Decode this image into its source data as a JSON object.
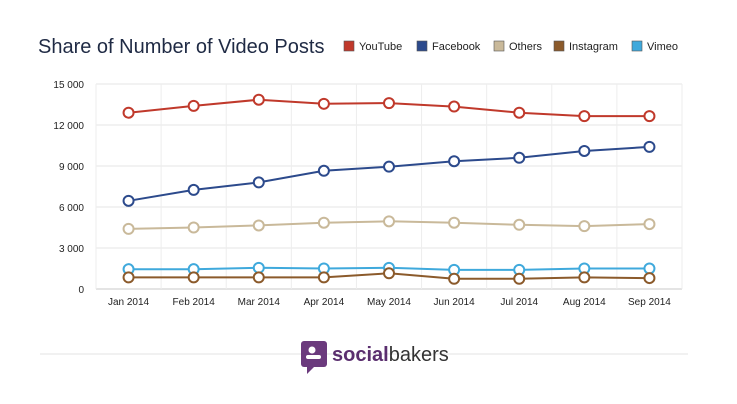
{
  "chart_data": {
    "type": "line",
    "title": "Share of Number of Video Posts",
    "xlabel": "",
    "ylabel": "",
    "categories": [
      "Jan 2014",
      "Feb 2014",
      "Mar 2014",
      "Apr 2014",
      "May 2014",
      "Jun 2014",
      "Jul 2014",
      "Aug 2014",
      "Sep 2014"
    ],
    "ylim": [
      0,
      15000
    ],
    "yticks": [
      0,
      3000,
      6000,
      9000,
      12000,
      15000
    ],
    "ytick_labels": [
      "0",
      "3 000",
      "6 000",
      "9 000",
      "12 000",
      "15 000"
    ],
    "grid": true,
    "legend_position": "top-right",
    "series": [
      {
        "name": "YouTube",
        "color": "#c0392b",
        "values": [
          12900,
          13400,
          13850,
          13550,
          13600,
          13350,
          12900,
          12650,
          12650
        ]
      },
      {
        "name": "Facebook",
        "color": "#2c4a8c",
        "values": [
          6450,
          7250,
          7800,
          8650,
          8950,
          9350,
          9600,
          10100,
          10400
        ]
      },
      {
        "name": "Others",
        "color": "#c9b99a",
        "values": [
          4400,
          4500,
          4650,
          4850,
          4950,
          4850,
          4700,
          4600,
          4750
        ]
      },
      {
        "name": "Instagram",
        "color": "#8b5a2b",
        "values": [
          850,
          850,
          850,
          850,
          1150,
          750,
          750,
          850,
          800
        ]
      },
      {
        "name": "Vimeo",
        "color": "#3fa9dc",
        "values": [
          1450,
          1450,
          1550,
          1500,
          1550,
          1400,
          1400,
          1500,
          1500
        ]
      }
    ]
  },
  "brand": {
    "name_bold": "social",
    "name_rest": "bakers"
  }
}
